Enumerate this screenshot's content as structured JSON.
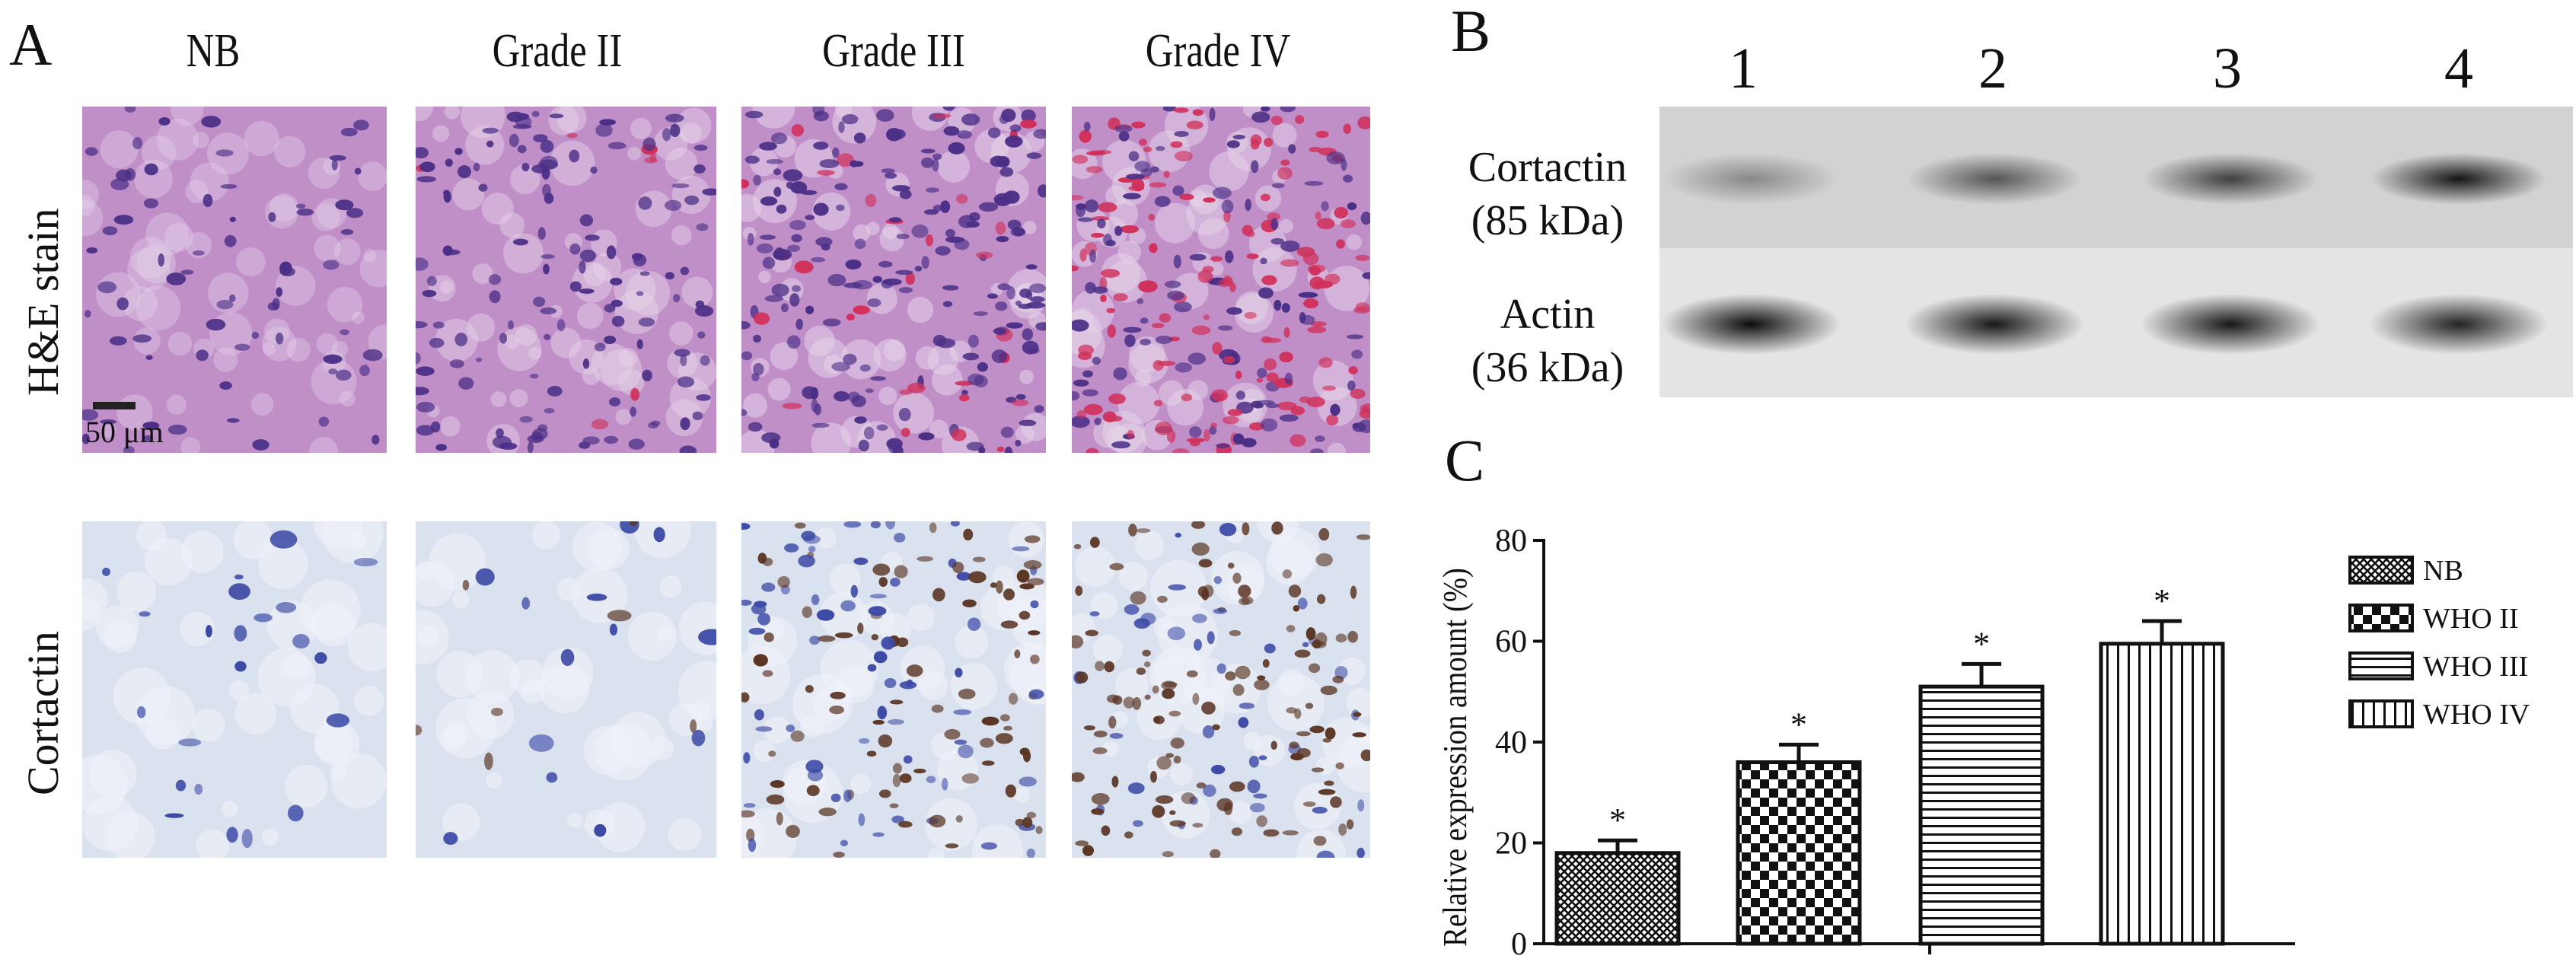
{
  "panel_a": {
    "letter": "A",
    "columns": [
      "NB",
      "Grade II",
      "Grade III",
      "Grade IV"
    ],
    "rows": [
      "H&E stain",
      "Cortactin"
    ],
    "scale_label": "50 μm",
    "colors": {
      "he_bg": "#c08fc8",
      "he_nuclei": "#4a2f86",
      "he_red": "#d0305a",
      "ihc_bg": "#dbe2ef",
      "ihc_blue": "#3c4aa6",
      "ihc_brown": "#5a3524"
    }
  },
  "panel_b": {
    "letter": "B",
    "lanes": [
      "1",
      "2",
      "3",
      "4"
    ],
    "bands": [
      {
        "label_line1": "Cortactin",
        "label_line2": "(85 kDa)",
        "intensity": [
          0.35,
          0.6,
          0.7,
          0.9
        ]
      },
      {
        "label_line1": "Actin",
        "label_line2": "(36 kDa)",
        "intensity": [
          0.95,
          0.9,
          0.9,
          0.85
        ]
      }
    ]
  },
  "panel_c": {
    "letter": "C",
    "chart_data": {
      "type": "bar",
      "categories": [
        "NB",
        "WHO II",
        "WHO III",
        "WHO IV"
      ],
      "values": [
        18,
        36,
        51,
        59.5
      ],
      "errors": [
        2.5,
        3.5,
        4.5,
        4.5
      ],
      "annotations": [
        "*",
        "*",
        "*",
        "*"
      ],
      "ylabel": "Relative expression amount (%)",
      "xlabel": "",
      "ylim": [
        0,
        80
      ],
      "yticks": [
        0,
        20,
        40,
        60,
        80
      ],
      "legend": [
        "NB",
        "WHO II",
        "WHO III",
        "WHO IV"
      ],
      "legend_position": "right",
      "patterns": [
        "crosshatch",
        "checker",
        "horizontal-lines",
        "vertical-lines"
      ],
      "grid": false
    }
  }
}
